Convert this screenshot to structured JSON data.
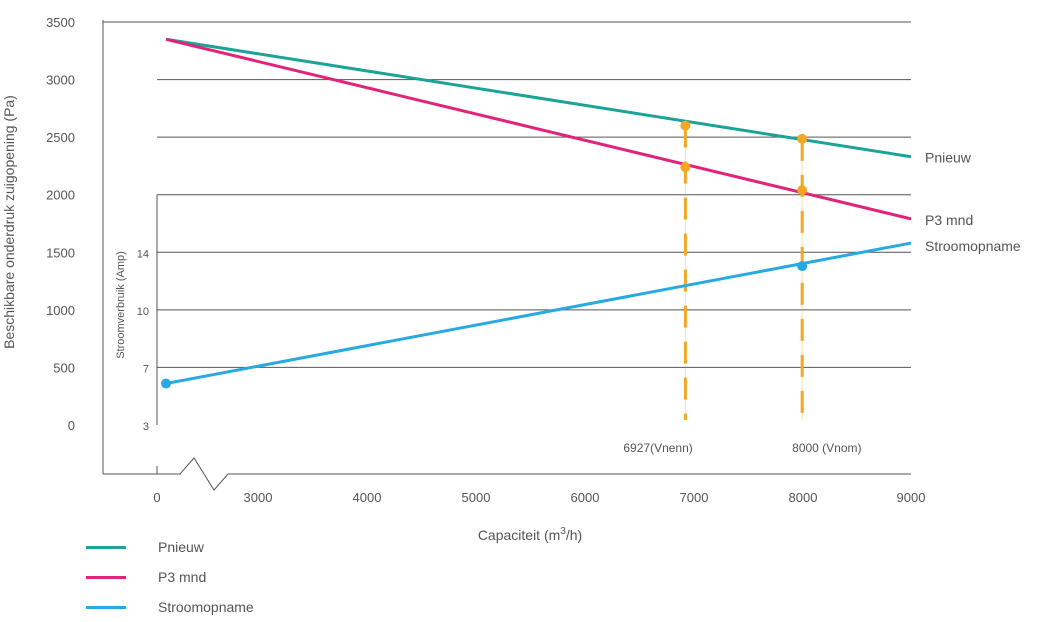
{
  "chart_data": {
    "type": "line",
    "ylabel": "Beschikbare onderdruk zuigopening (Pa)",
    "xlabel_prefix": "Capaciteit (m",
    "xlabel_sup": "3",
    "xlabel_suffix": "/h)",
    "secondary_ylabel": "Stroomverbruik (Amp)",
    "ylim": [
      0,
      3500
    ],
    "yticks": [
      "3500",
      "3000",
      "2500",
      "2000",
      "1500",
      "1000",
      "500",
      "0"
    ],
    "xticks": [
      "0",
      "3000",
      "4000",
      "5000",
      "6000",
      "7000",
      "8000",
      "9000"
    ],
    "secondary_yticks": [
      "14",
      "10",
      "7",
      "3"
    ],
    "axis_break": true,
    "series": [
      {
        "name": "Pnieuw",
        "color": "#1aa396",
        "x": [
          2100,
          9000
        ],
        "y": [
          3350,
          2330
        ]
      },
      {
        "name": "P3 mnd",
        "color": "#e2237a",
        "x": [
          2100,
          9000
        ],
        "y": [
          3350,
          1790
        ]
      },
      {
        "name": "Stroomopname",
        "color": "#27a9e1",
        "x": [
          2100,
          9000
        ],
        "y": [
          360,
          1580
        ]
      }
    ],
    "markers": [
      {
        "series": "Pnieuw",
        "x": 6927,
        "y": 2600,
        "color": "#f5a623"
      },
      {
        "series": "P3 mnd",
        "x": 6927,
        "y": 2240,
        "color": "#f5a623"
      },
      {
        "series": "Pnieuw",
        "x": 8000,
        "y": 2485,
        "color": "#f5a623"
      },
      {
        "series": "P3 mnd",
        "x": 8000,
        "y": 2040,
        "color": "#f5a623"
      },
      {
        "series": "Stroomopname",
        "x": 8000,
        "y": 1380,
        "color": "#27a9e1"
      },
      {
        "series": "Stroomopname",
        "x": 2100,
        "y": 360,
        "color": "#27a9e1"
      }
    ],
    "vlines": [
      {
        "x": 6927,
        "label": "6927(Vnenn)"
      },
      {
        "x": 8000,
        "label": "8000 (Vnom)"
      }
    ],
    "vline_color": "#f5a623",
    "end_labels": [
      {
        "text": "Pnieuw",
        "y": 2330
      },
      {
        "text": "P3 mnd",
        "y": 1790
      },
      {
        "text": "Stroomopname",
        "y": 1580
      }
    ],
    "legend": [
      {
        "label": "Pnieuw",
        "color": "#1aa396"
      },
      {
        "label": "P3 mnd",
        "color": "#e2237a"
      },
      {
        "label": "Stroomopname",
        "color": "#27a9e1"
      }
    ],
    "grid": true,
    "grid_color": "#555555"
  }
}
